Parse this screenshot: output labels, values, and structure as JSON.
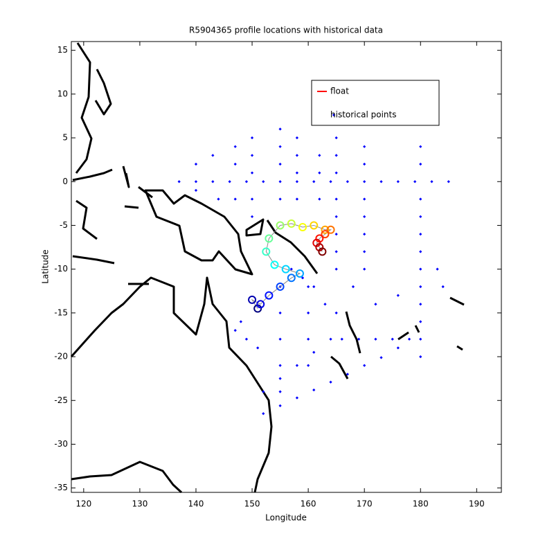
{
  "chart_data": {
    "type": "scatter",
    "title": "R5904365 profile locations with historical data",
    "x_label": "Longitude",
    "y_label": "Latitude",
    "xlim": [
      117.8,
      194.4
    ],
    "ylim": [
      -35.5,
      16
    ],
    "xticks": [
      120,
      130,
      140,
      150,
      160,
      170,
      180,
      190
    ],
    "yticks": [
      -35,
      -30,
      -25,
      -20,
      -15,
      -10,
      -5,
      0,
      5,
      10,
      15
    ],
    "legend": "top-right",
    "series": [
      {
        "name": "float",
        "color": "#ff0000",
        "colormap": "jet",
        "x": [
          151,
          150,
          151.5,
          153,
          155,
          157,
          158.5,
          156,
          154,
          152.5,
          153,
          155,
          157,
          159,
          161,
          163,
          164,
          163,
          162,
          161.5,
          162,
          162.5
        ],
        "values": [
          -14.5,
          -13.5,
          -14,
          -13,
          -12,
          -11,
          -10.5,
          -10,
          -9.5,
          -8,
          -6.5,
          -5,
          -4.8,
          -5.2,
          -5,
          -5.5,
          -5.5,
          -6,
          -6.5,
          -7,
          -7.5,
          -8
        ]
      },
      {
        "name": "historical points",
        "color": "#0000ff",
        "x": [
          137,
          140,
          143,
          146,
          149,
          152,
          155,
          158,
          161,
          164,
          167,
          170,
          173,
          176,
          179,
          182,
          185,
          180,
          180,
          180,
          180,
          180,
          180,
          180,
          180,
          180,
          180,
          180,
          180,
          165,
          165,
          165,
          165,
          165,
          165,
          165,
          165,
          155,
          155,
          155,
          155,
          150,
          150,
          150,
          150,
          150,
          147,
          147,
          147,
          158,
          158,
          158,
          158,
          162,
          162,
          162,
          170,
          170,
          170,
          170,
          170,
          170,
          170,
          140,
          140,
          143,
          144,
          152,
          155,
          158,
          161,
          164,
          167,
          170,
          173,
          176,
          166,
          169,
          172,
          175,
          178,
          152,
          155,
          158,
          161,
          164,
          155,
          155,
          155,
          155,
          155,
          160,
          160,
          160,
          160,
          147,
          149,
          151,
          148,
          157,
          159,
          161,
          163,
          165,
          168,
          172,
          176,
          183,
          184
        ],
        "values": [
          0,
          0,
          0,
          0,
          0,
          0,
          0,
          0,
          0,
          0,
          0,
          0,
          0,
          0,
          0,
          0,
          0,
          4,
          2,
          -2,
          -4,
          -6,
          -8,
          -10,
          -12,
          -14,
          -16,
          -18,
          -20,
          5,
          3,
          1,
          -2,
          -4,
          -6,
          -8,
          -10,
          6,
          4,
          2,
          -2,
          5,
          3,
          1,
          -2,
          -4,
          4,
          2,
          -2,
          5,
          3,
          1,
          -2,
          3,
          1,
          -2,
          4,
          2,
          -2,
          -4,
          -6,
          -8,
          -10,
          2,
          -1,
          3,
          -2,
          -26.5,
          -25.6,
          -24.7,
          -23.8,
          -22.9,
          -22,
          -21,
          -20.1,
          -19,
          -18,
          -18,
          -18,
          -18,
          -18,
          -24,
          -22.5,
          -21,
          -19.5,
          -18,
          -12,
          -15,
          -18,
          -21,
          -24,
          -12,
          -15,
          -18,
          -21,
          -17,
          -18,
          -19,
          -16,
          -10,
          -11,
          -12,
          -14,
          -15,
          -12,
          -14,
          -13,
          -10,
          -12
        ]
      }
    ]
  }
}
